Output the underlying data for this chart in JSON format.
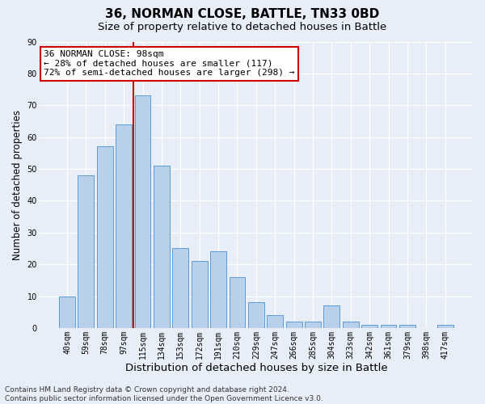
{
  "title": "36, NORMAN CLOSE, BATTLE, TN33 0BD",
  "subtitle": "Size of property relative to detached houses in Battle",
  "xlabel": "Distribution of detached houses by size in Battle",
  "ylabel": "Number of detached properties",
  "categories": [
    "40sqm",
    "59sqm",
    "78sqm",
    "97sqm",
    "115sqm",
    "134sqm",
    "153sqm",
    "172sqm",
    "191sqm",
    "210sqm",
    "229sqm",
    "247sqm",
    "266sqm",
    "285sqm",
    "304sqm",
    "323sqm",
    "342sqm",
    "361sqm",
    "379sqm",
    "398sqm",
    "417sqm"
  ],
  "values": [
    10,
    48,
    57,
    64,
    73,
    51,
    25,
    21,
    24,
    16,
    8,
    4,
    2,
    2,
    7,
    2,
    1,
    1,
    1,
    0,
    1
  ],
  "bar_color": "#b8d0ea",
  "bar_edge_color": "#5b9bd5",
  "vline_x_index": 3.5,
  "vline_color": "#cc0000",
  "annotation_text": "36 NORMAN CLOSE: 98sqm\n← 28% of detached houses are smaller (117)\n72% of semi-detached houses are larger (298) →",
  "annotation_box_color": "#ffffff",
  "annotation_box_edge": "#cc0000",
  "ylim": [
    0,
    90
  ],
  "yticks": [
    0,
    10,
    20,
    30,
    40,
    50,
    60,
    70,
    80,
    90
  ],
  "footer": "Contains HM Land Registry data © Crown copyright and database right 2024.\nContains public sector information licensed under the Open Government Licence v3.0.",
  "bg_color": "#e8eef8",
  "grid_color": "#ffffff",
  "title_fontsize": 11,
  "subtitle_fontsize": 9.5,
  "xlabel_fontsize": 9.5,
  "ylabel_fontsize": 8.5,
  "footer_fontsize": 6.5,
  "tick_fontsize": 7.0
}
